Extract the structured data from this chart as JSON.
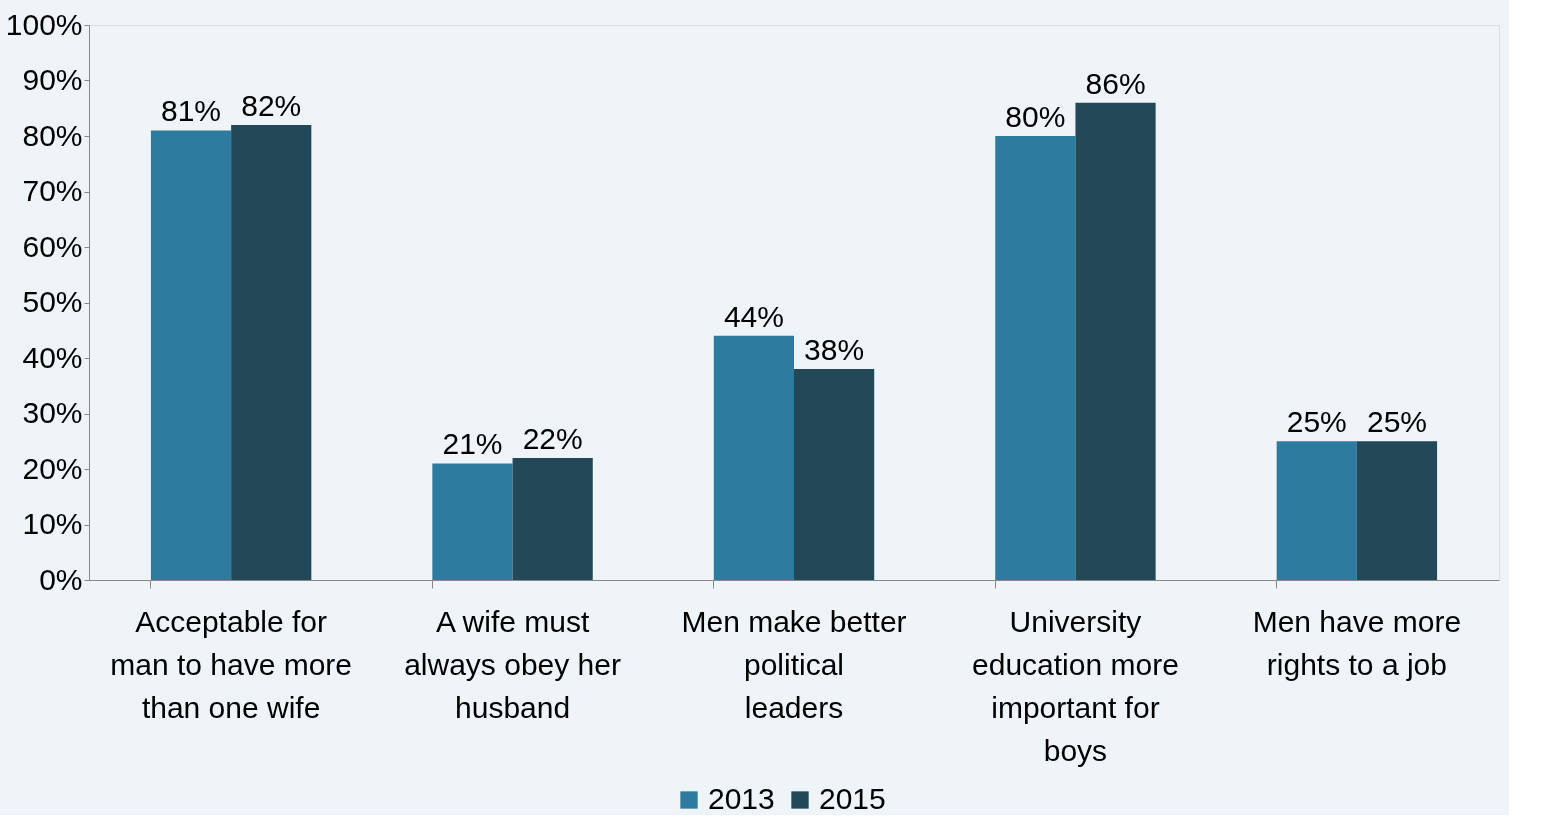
{
  "chart_data": {
    "type": "bar",
    "categories": [
      "Acceptable for man to have more than one wife",
      "A wife must always obey her husband",
      "Men make better political leaders",
      "University education more important for boys",
      "Men have more rights to a job"
    ],
    "series": [
      {
        "name": "2013",
        "color": "#2e7ba0",
        "values": [
          81,
          21,
          44,
          80,
          25
        ],
        "value_labels": [
          "81%",
          "21%",
          "44%",
          "80%",
          "25%"
        ]
      },
      {
        "name": "2015",
        "color": "#234858",
        "values": [
          82,
          22,
          38,
          86,
          25
        ],
        "value_labels": [
          "82%",
          "22%",
          "38%",
          "86%",
          "25%"
        ]
      }
    ],
    "ylim": [
      0,
      100
    ],
    "yticks": [
      {
        "value": 0,
        "label": "0%"
      },
      {
        "value": 10,
        "label": "10%"
      },
      {
        "value": 20,
        "label": "20%"
      },
      {
        "value": 30,
        "label": "30%"
      },
      {
        "value": 40,
        "label": "40%"
      },
      {
        "value": 50,
        "label": "50%"
      },
      {
        "value": 60,
        "label": "60%"
      },
      {
        "value": 70,
        "label": "70%"
      },
      {
        "value": 80,
        "label": "80%"
      },
      {
        "value": 90,
        "label": "90%"
      },
      {
        "value": 100,
        "label": "100%"
      }
    ],
    "grid": false,
    "legend": "bottom"
  }
}
